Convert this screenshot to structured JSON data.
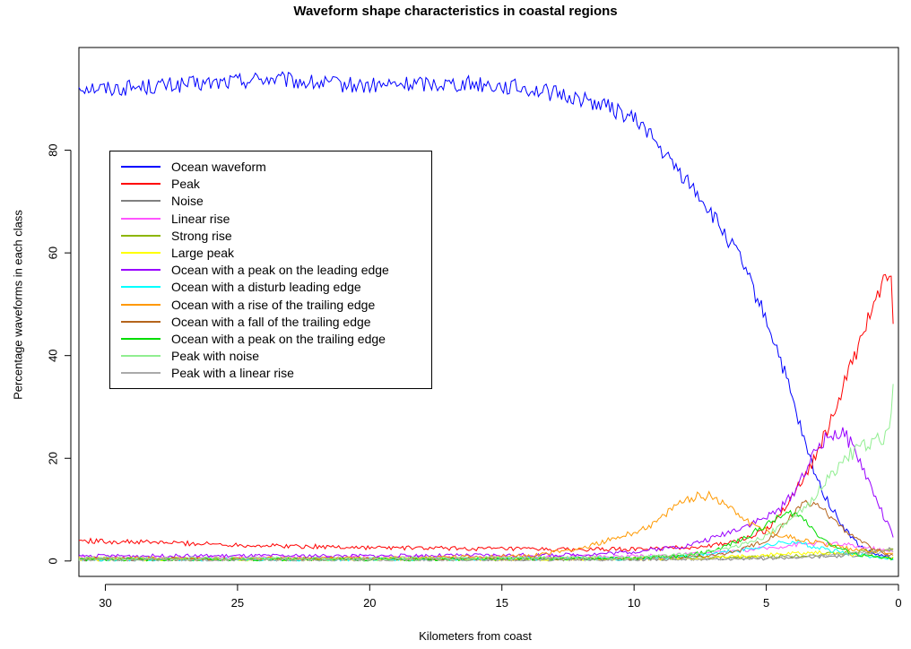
{
  "chart_data": {
    "type": "line",
    "title": "Waveform shape characteristics in coastal regions",
    "xlabel": "Kilometers from coast",
    "ylabel": "Percentage waveforms in each class",
    "xlim": [
      31,
      0
    ],
    "ylim": [
      -3,
      100
    ],
    "x_ticks": [
      30,
      25,
      20,
      15,
      10,
      5,
      0
    ],
    "y_ticks": [
      0,
      20,
      40,
      60,
      80
    ],
    "legend_position": "top-left",
    "grid": false,
    "series": [
      {
        "name": "Ocean waveform",
        "color": "#0000ff",
        "x": [
          31,
          30,
          28,
          26,
          24,
          22,
          20,
          18,
          16,
          14,
          13,
          12,
          11,
          10,
          9.5,
          9,
          8.5,
          8,
          7.5,
          7,
          6.5,
          6,
          5.5,
          5,
          4.5,
          4,
          3.5,
          3,
          2.5,
          2,
          1.5,
          1,
          0.5,
          0.2
        ],
        "y": [
          92.5,
          92,
          92.5,
          93,
          94,
          93,
          92.5,
          93,
          93,
          92,
          91,
          90,
          88.5,
          86,
          84,
          80,
          77,
          74,
          71,
          67,
          63,
          59,
          53,
          47,
          40,
          31,
          22,
          15,
          10,
          6,
          3,
          1.5,
          0.8,
          0.5
        ]
      },
      {
        "name": "Peak",
        "color": "#ff0000",
        "x": [
          31,
          30,
          28,
          26,
          24,
          22,
          20,
          18,
          16,
          14,
          12,
          10,
          8,
          7,
          6,
          5,
          4.5,
          4,
          3.5,
          3,
          2.5,
          2,
          1.5,
          1,
          0.5,
          0.3,
          0.2
        ],
        "y": [
          4,
          3.8,
          3.6,
          3.3,
          3,
          2.8,
          2.6,
          2.5,
          2.4,
          2.3,
          2.2,
          2.3,
          2.6,
          3,
          4,
          6,
          9,
          13,
          17,
          22,
          28,
          35,
          42,
          49,
          55,
          57,
          47
        ]
      },
      {
        "name": "Noise",
        "color": "#808080",
        "x": [
          31,
          20,
          10,
          5,
          3,
          2,
          1,
          0.5,
          0.2
        ],
        "y": [
          0.2,
          0.3,
          0.3,
          0.5,
          0.8,
          1,
          1.5,
          2,
          2.5
        ]
      },
      {
        "name": "Linear rise",
        "color": "#ff55ff",
        "x": [
          31,
          20,
          10,
          7,
          5,
          4,
          3,
          2,
          1,
          0.5,
          0.2
        ],
        "y": [
          0.6,
          0.7,
          0.9,
          1.5,
          2.5,
          3.2,
          3.5,
          3.2,
          2.5,
          2,
          1.8
        ]
      },
      {
        "name": "Strong rise",
        "color": "#8db600",
        "x": [
          31,
          20,
          10,
          5,
          3,
          2,
          1,
          0.5,
          0.2
        ],
        "y": [
          0.4,
          0.4,
          0.5,
          0.8,
          1.2,
          1.6,
          2,
          2.2,
          2
        ]
      },
      {
        "name": "Large peak",
        "color": "#ffff00",
        "x": [
          31,
          20,
          10,
          7,
          5,
          4,
          3,
          2,
          1,
          0.5,
          0.2
        ],
        "y": [
          0.3,
          0.3,
          0.4,
          0.6,
          1.2,
          1.5,
          1.6,
          1.4,
          1,
          0.7,
          0.5
        ]
      },
      {
        "name": "Ocean with a peak on the leading edge",
        "color": "#9900ff",
        "x": [
          31,
          20,
          12,
          10,
          8,
          7,
          6,
          5,
          4.5,
          4,
          3.5,
          3,
          2.5,
          2,
          1.5,
          1,
          0.5,
          0.2
        ],
        "y": [
          1,
          1,
          1.2,
          1.8,
          3,
          4.5,
          6.5,
          8.5,
          10,
          13,
          18,
          22.5,
          25,
          24.5,
          20,
          14,
          8,
          5
        ]
      },
      {
        "name": "Ocean with a disturb leading edge",
        "color": "#00ffff",
        "x": [
          31,
          20,
          10,
          8,
          6,
          5,
          4.5,
          4,
          3.5,
          3,
          2,
          1,
          0.5,
          0.2
        ],
        "y": [
          0.3,
          0.3,
          0.5,
          0.9,
          2,
          3,
          3.5,
          3.8,
          3.2,
          2.5,
          1.5,
          0.9,
          0.6,
          0.5
        ]
      },
      {
        "name": "Ocean with a rise of the trailing edge",
        "color": "#ff9900",
        "x": [
          31,
          20,
          14,
          12,
          11,
          10,
          9,
          8.5,
          8,
          7.5,
          7,
          6.5,
          6,
          5.5,
          5,
          4.5,
          4,
          3.5,
          3,
          2,
          1,
          0.2
        ],
        "y": [
          0.5,
          0.5,
          1,
          2.5,
          4,
          5.5,
          8,
          10.5,
          12,
          12.8,
          12.5,
          11,
          9,
          7,
          6,
          5,
          4.5,
          4,
          3.5,
          2.5,
          2,
          1.5
        ]
      },
      {
        "name": "Ocean with a fall of the trailing edge",
        "color": "#b5651d",
        "x": [
          31,
          20,
          10,
          7,
          6,
          5,
          4.5,
          4,
          3.5,
          3,
          2.5,
          2,
          1.5,
          1,
          0.5,
          0.2
        ],
        "y": [
          0.4,
          0.4,
          0.5,
          1,
          2,
          4,
          6,
          9,
          11.5,
          10.5,
          8.5,
          6,
          4,
          2.5,
          1.5,
          1
        ]
      },
      {
        "name": "Ocean with a peak on the trailing edge",
        "color": "#00dd00",
        "x": [
          31,
          20,
          10,
          8,
          7,
          6,
          5,
          4.5,
          4,
          3.5,
          3,
          2.5,
          2,
          1.5,
          1,
          0.5,
          0.2
        ],
        "y": [
          0.3,
          0.3,
          0.5,
          1,
          2,
          4,
          7,
          8.5,
          9.5,
          8,
          5,
          3,
          2,
          1.2,
          0.8,
          0.5,
          0.4
        ]
      },
      {
        "name": "Peak with noise",
        "color": "#90ee90",
        "x": [
          31,
          20,
          10,
          8,
          6,
          5,
          4,
          3.5,
          3,
          2.5,
          2,
          1.5,
          1,
          0.5,
          0.3,
          0.2
        ],
        "y": [
          0.5,
          0.5,
          0.7,
          1.2,
          3,
          5,
          8,
          10.5,
          14,
          17,
          20,
          22,
          23,
          24,
          26,
          36
        ]
      },
      {
        "name": "Peak with a linear rise",
        "color": "#aaaaaa",
        "x": [
          31,
          20,
          10,
          6,
          4,
          3,
          2,
          1,
          0.5,
          0.2
        ],
        "y": [
          0.2,
          0.2,
          0.3,
          0.5,
          0.8,
          1,
          1.3,
          1.6,
          1.8,
          2
        ]
      }
    ]
  }
}
